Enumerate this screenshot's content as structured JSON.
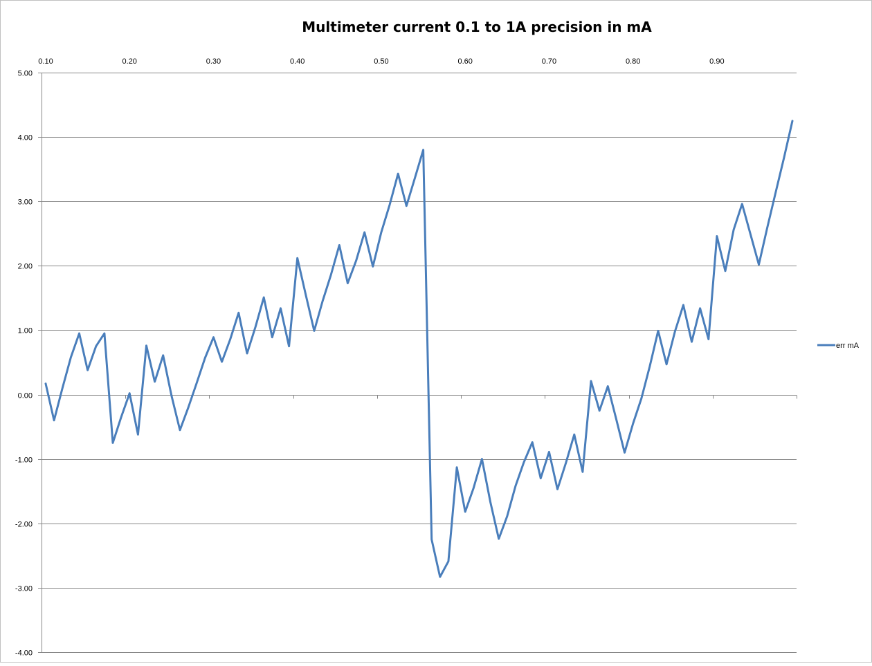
{
  "chart_data": {
    "type": "line",
    "title": "Multimeter current 0.1 to 1A precision in mA",
    "xlabel": "",
    "ylabel": "",
    "x_axis_position": "top",
    "xlim": [
      0.1,
      0.99
    ],
    "ylim": [
      -4.0,
      5.0
    ],
    "x_ticks": [
      "0.10",
      "0.20",
      "0.30",
      "0.40",
      "0.50",
      "0.60",
      "0.70",
      "0.80",
      "0.90"
    ],
    "y_ticks": [
      "5.00",
      "4.00",
      "3.00",
      "2.00",
      "1.00",
      "0.00",
      "-1.00",
      "-2.00",
      "-3.00",
      "-4.00"
    ],
    "grid": "horizontal major",
    "legend_position": "right",
    "series": [
      {
        "name": "err mA",
        "color": "#4A7EBB",
        "x": [
          0.1,
          0.11,
          0.12,
          0.13,
          0.14,
          0.15,
          0.16,
          0.17,
          0.18,
          0.19,
          0.2,
          0.21,
          0.22,
          0.23,
          0.24,
          0.25,
          0.26,
          0.27,
          0.28,
          0.29,
          0.3,
          0.31,
          0.32,
          0.33,
          0.34,
          0.35,
          0.36,
          0.37,
          0.38,
          0.39,
          0.4,
          0.41,
          0.42,
          0.43,
          0.44,
          0.45,
          0.46,
          0.47,
          0.48,
          0.49,
          0.5,
          0.51,
          0.52,
          0.53,
          0.54,
          0.55,
          0.56,
          0.57,
          0.58,
          0.59,
          0.6,
          0.61,
          0.62,
          0.63,
          0.64,
          0.65,
          0.66,
          0.67,
          0.68,
          0.69,
          0.7,
          0.71,
          0.72,
          0.73,
          0.74,
          0.75,
          0.76,
          0.77,
          0.78,
          0.79,
          0.8,
          0.81,
          0.82,
          0.83,
          0.84,
          0.85,
          0.86,
          0.87,
          0.88,
          0.89,
          0.9,
          0.91,
          0.92,
          0.93,
          0.94,
          0.95,
          0.96,
          0.97,
          0.98,
          0.99
        ],
        "values": [
          0.17,
          -0.4,
          0.1,
          0.58,
          0.95,
          0.38,
          0.75,
          0.95,
          -0.75,
          -0.35,
          0.02,
          -0.62,
          0.76,
          0.2,
          0.61,
          -0.02,
          -0.55,
          -0.2,
          0.18,
          0.57,
          0.89,
          0.51,
          0.86,
          1.27,
          0.64,
          1.05,
          1.51,
          0.89,
          1.34,
          0.75,
          2.12,
          1.55,
          0.99,
          1.45,
          1.86,
          2.32,
          1.73,
          2.08,
          2.52,
          1.99,
          2.52,
          2.95,
          3.43,
          2.93,
          3.36,
          3.8,
          -2.25,
          -2.83,
          -2.59,
          -1.13,
          -1.82,
          -1.45,
          -1.0,
          -1.67,
          -2.24,
          -1.89,
          -1.42,
          -1.05,
          -0.74,
          -1.3,
          -0.89,
          -1.47,
          -1.06,
          -0.62,
          -1.2,
          0.21,
          -0.25,
          0.13,
          -0.38,
          -0.9,
          -0.45,
          -0.06,
          0.44,
          0.99,
          0.47,
          0.98,
          1.39,
          0.82,
          1.34,
          0.86,
          2.46,
          1.92,
          2.56,
          2.96,
          2.49,
          2.02,
          2.59,
          3.14,
          3.68,
          4.25
        ]
      }
    ]
  }
}
